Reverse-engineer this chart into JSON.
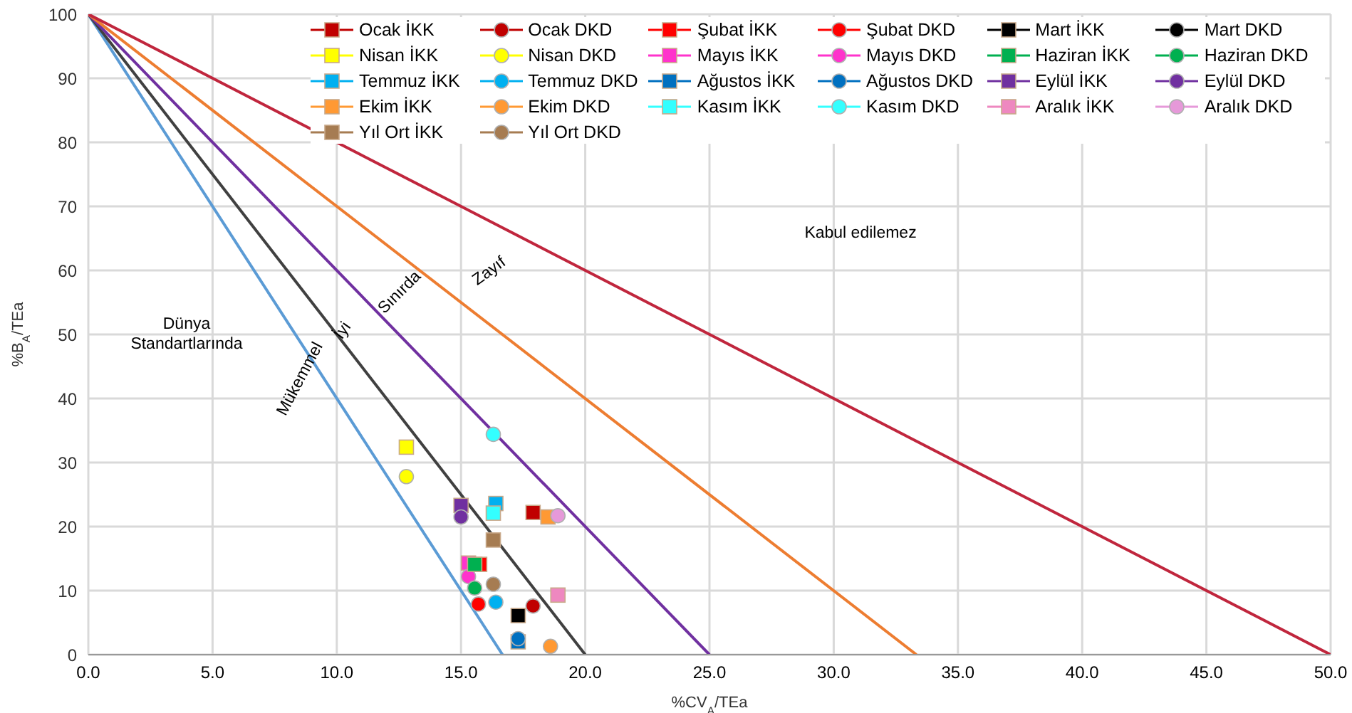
{
  "chart_data": {
    "type": "scatter",
    "xlabel": "%CV$_{A}$/TEa",
    "ylabel": "%B$_{A}$/TEa",
    "xlim": [
      0,
      50
    ],
    "xticks": [
      {
        "value": 0,
        "label": "0.0"
      },
      {
        "value": 5,
        "label": "5.0"
      },
      {
        "value": 10,
        "label": "10.0"
      },
      {
        "value": 15,
        "label": "15.0"
      },
      {
        "value": 20,
        "label": "20.0"
      },
      {
        "value": 25,
        "label": "25.0"
      },
      {
        "value": 30,
        "label": "30.0"
      },
      {
        "value": 35,
        "label": "35.0"
      },
      {
        "value": 40,
        "label": "40.0"
      },
      {
        "value": 45,
        "label": "45.0"
      },
      {
        "value": 50,
        "label": "50.0"
      }
    ],
    "ylim": [
      0,
      100
    ],
    "yticks": [
      0,
      10,
      20,
      30,
      40,
      50,
      60,
      70,
      80,
      90,
      100
    ],
    "grid": true,
    "legend": "top right",
    "annotations": [
      "Kabul edilemez",
      "Zayıf",
      "Sınırda",
      "İyi",
      "Mükemmel",
      "Dünya\nStandartlarında"
    ],
    "series": [
      {
        "type": "line",
        "marker": "none",
        "color": "#5b9bd5",
        "x": [
          0,
          16.67
        ],
        "values": [
          100,
          0
        ]
      },
      {
        "type": "line",
        "marker": "none",
        "color": "#404040",
        "x": [
          0,
          20
        ],
        "values": [
          100,
          0
        ]
      },
      {
        "type": "line",
        "marker": "none",
        "color": "#7030a0",
        "x": [
          0,
          25
        ],
        "values": [
          100,
          0
        ]
      },
      {
        "type": "line",
        "marker": "none",
        "color": "#ed7d31",
        "x": [
          0,
          33.33
        ],
        "values": [
          100,
          0
        ]
      },
      {
        "type": "line",
        "marker": "none",
        "color": "#c0263d",
        "x": [
          0,
          50
        ],
        "values": [
          100,
          0
        ]
      },
      {
        "name": "Ocak İKK",
        "marker": "square",
        "color": "#c00000",
        "x": [
          17.9
        ],
        "values": [
          22.2
        ]
      },
      {
        "name": "Ocak DKD",
        "marker": "circle",
        "color": "#c00000",
        "x": [
          17.9
        ],
        "values": [
          7.6
        ]
      },
      {
        "name": "Şubat İKK",
        "marker": "square",
        "color": "#ff0000",
        "x": [
          15.75
        ],
        "values": [
          14.1
        ]
      },
      {
        "name": "Şubat DKD",
        "marker": "circle",
        "color": "#ff0000",
        "x": [
          15.7
        ],
        "values": [
          7.9
        ]
      },
      {
        "name": "Mart İKK",
        "marker": "square",
        "color": "#000000",
        "x": [
          17.3
        ],
        "values": [
          6.1
        ]
      },
      {
        "name": "Mart DKD",
        "marker": "circle",
        "color": "#000000",
        "x": [
          null
        ],
        "values": [
          null
        ]
      },
      {
        "name": "Nisan İKK",
        "marker": "square",
        "color": "#ffff00",
        "x": [
          12.8
        ],
        "values": [
          32.4
        ]
      },
      {
        "name": "Nisan DKD",
        "marker": "circle",
        "color": "#ffff00",
        "x": [
          12.8
        ],
        "values": [
          27.8
        ]
      },
      {
        "name": "Mayıs İKK",
        "marker": "square",
        "color": "#ff33cc",
        "x": [
          15.3
        ],
        "values": [
          14.3
        ]
      },
      {
        "name": "Mayıs DKD",
        "marker": "circle",
        "color": "#ff33cc",
        "x": [
          15.3
        ],
        "values": [
          12.2
        ]
      },
      {
        "name": "Haziran İKK",
        "marker": "square",
        "color": "#00b050",
        "x": [
          15.55
        ],
        "values": [
          14.1
        ]
      },
      {
        "name": "Haziran DKD",
        "marker": "circle",
        "color": "#00b050",
        "x": [
          15.55
        ],
        "values": [
          10.4
        ]
      },
      {
        "name": "Temmuz İKK",
        "marker": "square",
        "color": "#00b0f0",
        "x": [
          16.4
        ],
        "values": [
          23.6
        ]
      },
      {
        "name": "Temmuz DKD",
        "marker": "circle",
        "color": "#00b0f0",
        "x": [
          16.4
        ],
        "values": [
          8.2
        ]
      },
      {
        "name": "Ağustos İKK",
        "marker": "square",
        "color": "#0070c0",
        "x": [
          17.3
        ],
        "values": [
          2.0
        ]
      },
      {
        "name": "Ağustos DKD",
        "marker": "circle",
        "color": "#0070c0",
        "x": [
          17.3
        ],
        "values": [
          2.5
        ]
      },
      {
        "name": "Eylül İKK",
        "marker": "square",
        "color": "#7030a0",
        "x": [
          15.0
        ],
        "values": [
          23.3
        ]
      },
      {
        "name": "Eylül DKD",
        "marker": "circle",
        "color": "#7030a0",
        "x": [
          15.0
        ],
        "values": [
          21.5
        ]
      },
      {
        "name": "Ekim İKK",
        "marker": "square",
        "color": "#ff9933",
        "x": [
          18.5
        ],
        "values": [
          21.5
        ]
      },
      {
        "name": "Ekim DKD",
        "marker": "circle",
        "color": "#ff9933",
        "x": [
          18.6
        ],
        "values": [
          1.3
        ]
      },
      {
        "name": "Kasım İKK",
        "marker": "square",
        "color": "#33ffff",
        "x": [
          16.3
        ],
        "values": [
          22.1
        ]
      },
      {
        "name": "Kasım DKD",
        "marker": "circle",
        "color": "#33ffff",
        "x": [
          16.3
        ],
        "values": [
          34.4
        ]
      },
      {
        "name": "Aralık İKK",
        "marker": "square",
        "color": "#ee88c0",
        "x": [
          18.9
        ],
        "values": [
          9.3
        ]
      },
      {
        "name": "Aralık DKD",
        "marker": "circle",
        "color": "#e699d9",
        "x": [
          18.9
        ],
        "values": [
          21.7
        ]
      },
      {
        "name": "Yıl Ort İKK",
        "marker": "square",
        "color": "#a67c52",
        "x": [
          16.3
        ],
        "values": [
          17.9
        ]
      },
      {
        "name": "Yıl Ort DKD",
        "marker": "circle",
        "color": "#a67c52",
        "x": [
          16.3
        ],
        "values": [
          11.0
        ]
      }
    ]
  }
}
